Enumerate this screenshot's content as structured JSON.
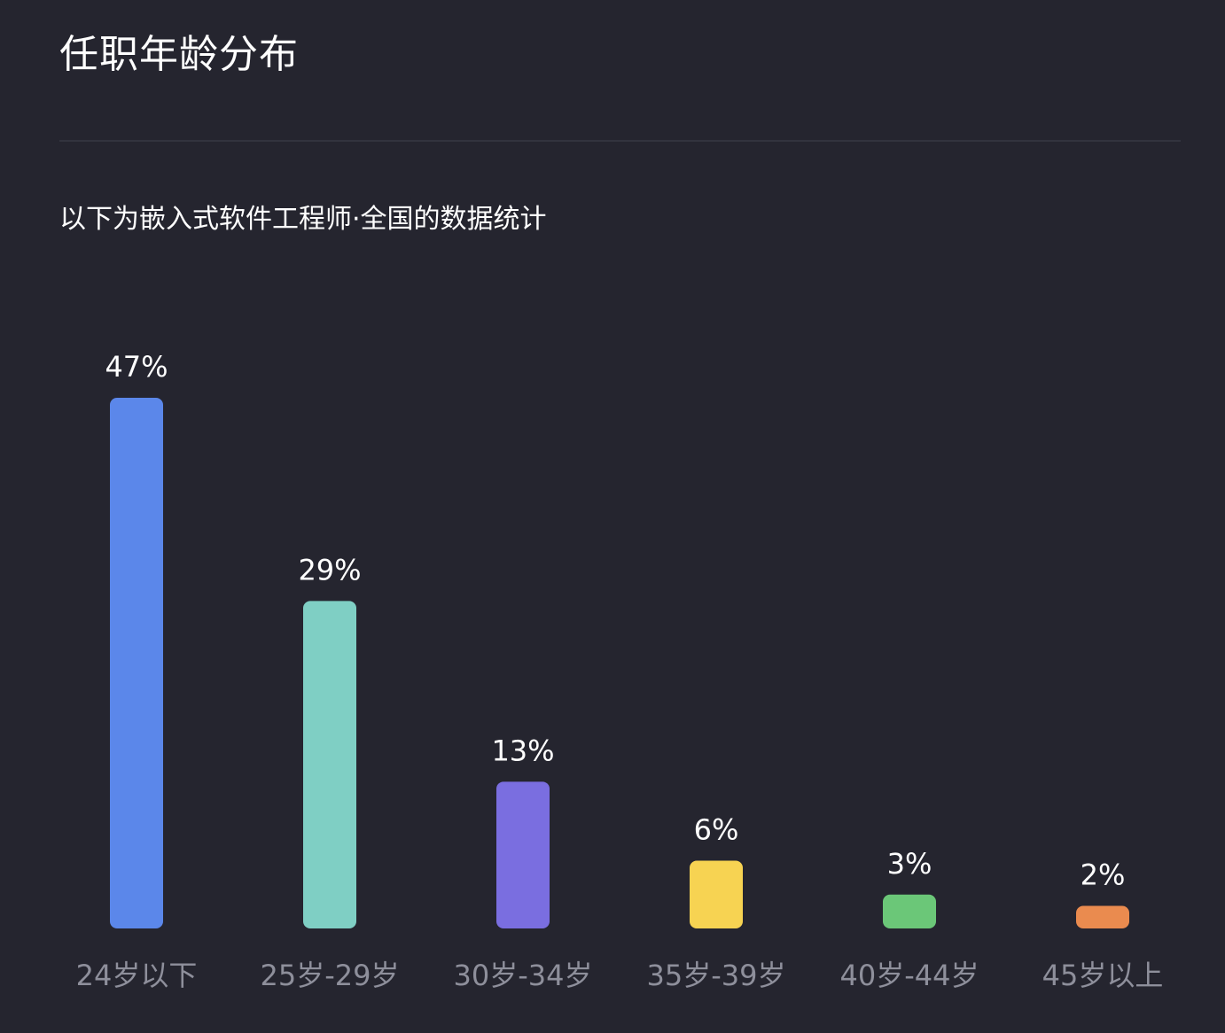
{
  "header": {
    "title": "任职年龄分布",
    "subtitle": "以下为嵌入式软件工程师·全国的数据统计"
  },
  "chart_data": {
    "type": "bar",
    "title": "任职年龄分布",
    "subtitle": "以下为嵌入式软件工程师·全国的数据统计",
    "categories": [
      "24岁以下",
      "25岁-29岁",
      "30岁-34岁",
      "35岁-39岁",
      "40岁-44岁",
      "45岁以上"
    ],
    "values": [
      47,
      29,
      13,
      6,
      3,
      2
    ],
    "value_labels": [
      "47%",
      "29%",
      "13%",
      "6%",
      "3%",
      "2%"
    ],
    "unit": "%",
    "colors": [
      "#5b87ea",
      "#7fcfc4",
      "#7a6ee0",
      "#f7d352",
      "#6bc778",
      "#ea8b4f"
    ],
    "ylim": [
      0,
      47
    ],
    "grid": false,
    "legend": "none"
  },
  "theme": {
    "background": "#25252f",
    "text": "#ffffff",
    "category_text": "#8e8f9b"
  }
}
